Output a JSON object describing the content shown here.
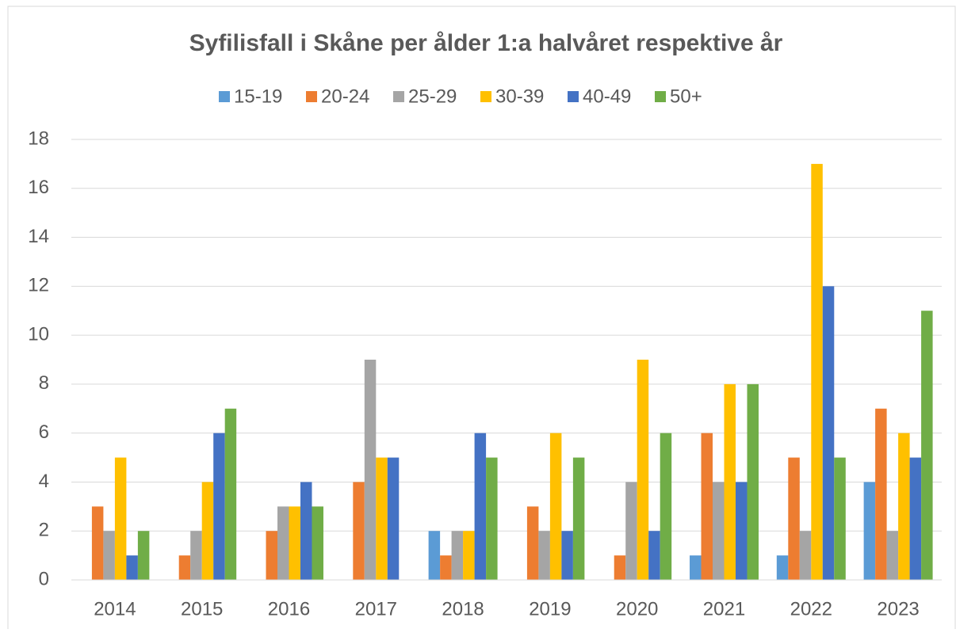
{
  "chart_data": {
    "type": "bar",
    "title": "Syfilisfall i Skåne per ålder 1:a halvåret respektive år",
    "categories": [
      "2014",
      "2015",
      "2016",
      "2017",
      "2018",
      "2019",
      "2020",
      "2021",
      "2022",
      "2023"
    ],
    "series": [
      {
        "name": "15-19",
        "color": "#5b9bd5",
        "values": [
          0,
          0,
          0,
          0,
          2,
          0,
          0,
          1,
          1,
          4
        ]
      },
      {
        "name": "20-24",
        "color": "#ed7d31",
        "values": [
          3,
          1,
          2,
          4,
          1,
          3,
          1,
          6,
          5,
          7
        ]
      },
      {
        "name": "25-29",
        "color": "#a5a5a5",
        "values": [
          2,
          2,
          3,
          9,
          2,
          2,
          4,
          4,
          2,
          2
        ]
      },
      {
        "name": "30-39",
        "color": "#ffc000",
        "values": [
          5,
          4,
          3,
          5,
          2,
          6,
          9,
          8,
          17,
          6
        ]
      },
      {
        "name": "40-49",
        "color": "#4472c4",
        "values": [
          1,
          6,
          4,
          5,
          6,
          2,
          2,
          4,
          12,
          5
        ]
      },
      {
        "name": "50+",
        "color": "#70ad47",
        "values": [
          2,
          7,
          3,
          0,
          5,
          5,
          6,
          8,
          5,
          11
        ]
      }
    ],
    "ylim": [
      0,
      18
    ],
    "yticks": [
      0,
      2,
      4,
      6,
      8,
      10,
      12,
      14,
      16,
      18
    ],
    "grid": true,
    "legend": "top"
  }
}
